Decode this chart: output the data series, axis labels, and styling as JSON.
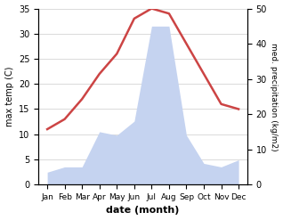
{
  "months": [
    "Jan",
    "Feb",
    "Mar",
    "Apr",
    "May",
    "Jun",
    "Jul",
    "Aug",
    "Sep",
    "Oct",
    "Nov",
    "Dec"
  ],
  "temperature": [
    11,
    13,
    17,
    22,
    26,
    33,
    35,
    34,
    28,
    22,
    16,
    15
  ],
  "precipitation_mm": [
    3.5,
    5,
    5,
    15,
    14,
    18,
    45,
    45,
    14,
    6,
    5,
    7
  ],
  "temp_color": "#cc4444",
  "precip_fill_color": "#c5d3f0",
  "xlabel": "date (month)",
  "ylabel_left": "max temp (C)",
  "ylabel_right": "med. precipitation (kg/m2)",
  "ylim_left": [
    0,
    35
  ],
  "ylim_right": [
    0,
    50
  ],
  "yticks_left": [
    0,
    5,
    10,
    15,
    20,
    25,
    30,
    35
  ],
  "yticks_right": [
    0,
    10,
    20,
    30,
    40,
    50
  ],
  "bg_color": "#ffffff",
  "grid_color": "#cccccc"
}
